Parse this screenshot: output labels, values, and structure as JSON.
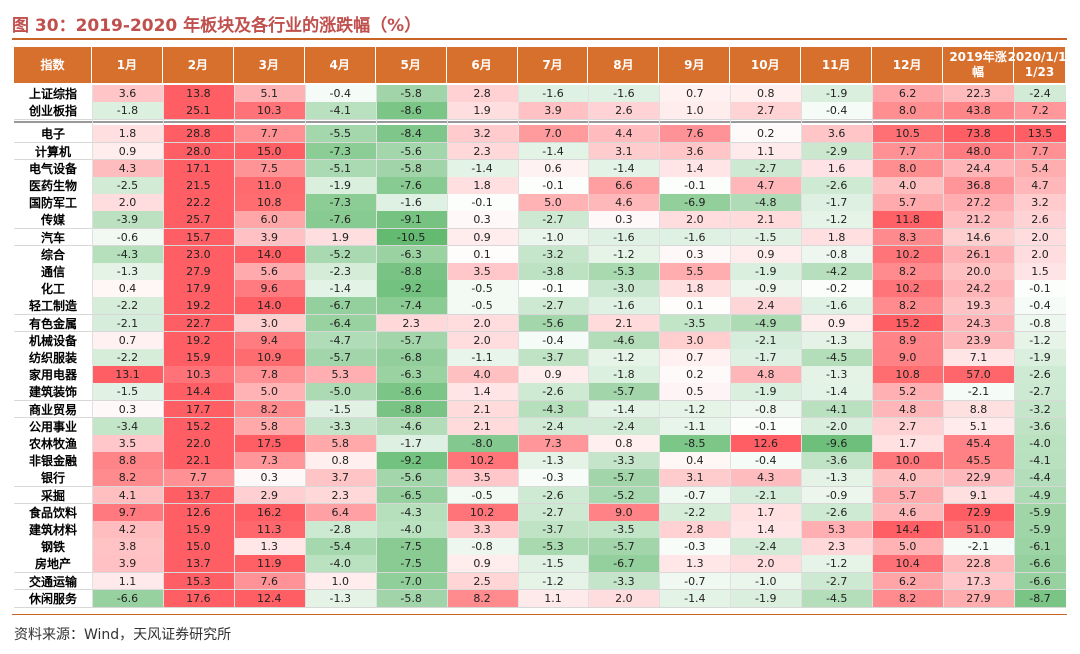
{
  "title": "图 30：2019-2020 年板块及各行业的涨跌幅（%）",
  "source": "资料来源：Wind，天风证券研究所",
  "colors": {
    "header_bg": "#d8702d",
    "positive": "#e8404a",
    "negative": "#3caa50",
    "accent": "#c86428"
  },
  "chart_data": {
    "type": "table",
    "columns": [
      "指数",
      "1月",
      "2月",
      "3月",
      "4月",
      "5月",
      "6月",
      "7月",
      "8月",
      "9月",
      "10月",
      "11月",
      "12月",
      "2019年涨幅",
      "2020/1/1-1/23"
    ],
    "rows": [
      {
        "name": "上证综指",
        "values": [
          3.6,
          13.8,
          5.1,
          -0.4,
          -5.8,
          2.8,
          -1.6,
          -1.6,
          0.7,
          0.8,
          -1.9,
          6.2,
          22.3,
          -2.4
        ]
      },
      {
        "name": "创业板指",
        "values": [
          -1.8,
          25.1,
          10.3,
          -4.1,
          -8.6,
          1.9,
          3.9,
          2.6,
          1.0,
          2.7,
          -0.4,
          8.0,
          43.8,
          7.2
        ]
      },
      {
        "name": "电子",
        "values": [
          1.8,
          28.8,
          7.7,
          -5.5,
          -8.4,
          3.2,
          7.0,
          4.4,
          7.6,
          0.2,
          3.6,
          10.5,
          73.8,
          13.5
        ]
      },
      {
        "name": "计算机",
        "values": [
          0.9,
          28.0,
          15.0,
          -7.3,
          -5.6,
          2.3,
          -1.4,
          3.1,
          3.6,
          1.1,
          -2.9,
          7.7,
          48.0,
          7.7
        ]
      },
      {
        "name": "电气设备",
        "values": [
          4.3,
          17.1,
          7.5,
          -5.1,
          -5.8,
          -1.4,
          0.6,
          -1.4,
          1.4,
          -2.7,
          1.6,
          8.0,
          24.4,
          5.4
        ]
      },
      {
        "name": "医药生物",
        "values": [
          -2.5,
          21.5,
          11.0,
          -1.9,
          -7.6,
          1.8,
          -0.1,
          6.6,
          -0.1,
          4.7,
          -2.6,
          4.0,
          36.8,
          4.7
        ]
      },
      {
        "name": "国防军工",
        "values": [
          2.0,
          22.2,
          10.8,
          -7.3,
          -1.6,
          -0.1,
          5.0,
          4.6,
          -6.9,
          -4.8,
          -1.7,
          5.7,
          27.2,
          3.2
        ]
      },
      {
        "name": "传媒",
        "values": [
          -3.9,
          25.7,
          6.0,
          -7.6,
          -9.1,
          0.3,
          -2.7,
          0.3,
          2.0,
          2.1,
          -1.2,
          11.8,
          21.2,
          2.6
        ]
      },
      {
        "name": "汽车",
        "values": [
          -0.6,
          15.7,
          3.9,
          1.9,
          -10.5,
          0.9,
          -1.0,
          -1.6,
          -1.6,
          -1.5,
          1.8,
          8.3,
          14.6,
          2.0
        ]
      },
      {
        "name": "综合",
        "values": [
          -4.3,
          23.0,
          14.0,
          -5.2,
          -6.3,
          0.1,
          -3.2,
          -1.2,
          0.3,
          0.9,
          -0.8,
          10.2,
          26.1,
          2.0
        ]
      },
      {
        "name": "通信",
        "values": [
          -1.3,
          27.9,
          5.6,
          -2.3,
          -8.8,
          3.5,
          -3.8,
          -5.3,
          5.5,
          -1.9,
          -4.2,
          8.2,
          20.0,
          1.5
        ]
      },
      {
        "name": "化工",
        "values": [
          0.4,
          17.9,
          9.6,
          -1.4,
          -9.2,
          -0.5,
          -0.1,
          -3.0,
          1.8,
          -0.9,
          -0.2,
          10.2,
          24.2,
          -0.1
        ]
      },
      {
        "name": "轻工制造",
        "values": [
          -2.2,
          19.2,
          14.0,
          -6.7,
          -7.4,
          -0.5,
          -2.7,
          -1.6,
          0.1,
          2.4,
          -1.6,
          8.2,
          19.3,
          -0.4
        ]
      },
      {
        "name": "有色金属",
        "values": [
          -2.1,
          22.7,
          3.0,
          -6.4,
          2.3,
          2.0,
          -5.6,
          2.1,
          -3.5,
          -4.9,
          0.9,
          15.2,
          24.3,
          -0.8
        ]
      },
      {
        "name": "机械设备",
        "values": [
          0.7,
          19.2,
          9.4,
          -4.7,
          -5.7,
          2.0,
          -0.4,
          -4.6,
          3.0,
          -2.1,
          -1.3,
          8.9,
          23.9,
          -1.2
        ]
      },
      {
        "name": "纺织服装",
        "values": [
          -2.2,
          15.9,
          10.9,
          -5.7,
          -6.8,
          -1.1,
          -3.7,
          -1.2,
          0.7,
          -1.7,
          -4.5,
          9.0,
          7.1,
          -1.9
        ]
      },
      {
        "name": "家用电器",
        "values": [
          13.1,
          10.3,
          7.8,
          5.3,
          -6.3,
          4.0,
          0.9,
          -1.8,
          0.2,
          4.8,
          -1.3,
          10.8,
          57.0,
          -2.6
        ]
      },
      {
        "name": "建筑装饰",
        "values": [
          -1.5,
          14.4,
          5.0,
          -5.0,
          -8.6,
          1.4,
          -2.6,
          -5.7,
          0.5,
          -1.9,
          -1.4,
          5.2,
          -2.1,
          -2.7
        ]
      },
      {
        "name": "商业贸易",
        "values": [
          0.3,
          17.7,
          8.2,
          -1.5,
          -8.8,
          2.1,
          -4.3,
          -1.4,
          -1.2,
          -0.8,
          -4.1,
          4.8,
          8.8,
          -3.2
        ]
      },
      {
        "name": "公用事业",
        "values": [
          -3.4,
          15.2,
          5.8,
          -3.3,
          -4.6,
          2.1,
          -2.4,
          -2.4,
          -1.1,
          -0.1,
          -2.0,
          2.7,
          5.1,
          -3.6
        ]
      },
      {
        "name": "农林牧渔",
        "values": [
          3.5,
          22.0,
          17.5,
          5.8,
          -1.7,
          -8.0,
          7.3,
          0.8,
          -8.5,
          12.6,
          -9.6,
          1.7,
          45.4,
          -4.0
        ]
      },
      {
        "name": "非银金融",
        "values": [
          8.8,
          22.1,
          7.3,
          0.8,
          -9.2,
          10.2,
          -1.3,
          -3.3,
          0.4,
          -0.4,
          -3.6,
          10.0,
          45.5,
          -4.1
        ]
      },
      {
        "name": "银行",
        "values": [
          8.2,
          7.7,
          0.3,
          3.7,
          -5.6,
          3.5,
          -0.3,
          -5.7,
          3.1,
          4.3,
          -1.3,
          4.0,
          22.9,
          -4.4
        ]
      },
      {
        "name": "采掘",
        "values": [
          4.1,
          13.7,
          2.9,
          2.3,
          -6.5,
          -0.5,
          -2.6,
          -5.2,
          -0.7,
          -2.1,
          -0.9,
          5.7,
          9.1,
          -4.9
        ]
      },
      {
        "name": "食品饮料",
        "values": [
          9.7,
          12.6,
          16.2,
          6.4,
          -4.3,
          10.2,
          -2.7,
          9.0,
          -2.2,
          1.7,
          -2.6,
          4.6,
          72.9,
          -5.9
        ]
      },
      {
        "name": "建筑材料",
        "values": [
          4.2,
          15.9,
          11.3,
          -2.8,
          -4.0,
          3.3,
          -3.7,
          -3.5,
          2.8,
          1.4,
          5.3,
          14.4,
          51.0,
          -5.9
        ]
      },
      {
        "name": "钢铁",
        "values": [
          3.8,
          15.0,
          1.3,
          -5.4,
          -7.5,
          -0.8,
          -5.3,
          -5.7,
          -0.3,
          -2.4,
          2.3,
          5.0,
          -2.1,
          -6.1
        ]
      },
      {
        "name": "房地产",
        "values": [
          3.9,
          13.7,
          11.9,
          -4.0,
          -7.5,
          0.9,
          -1.5,
          -6.7,
          1.3,
          2.0,
          -1.2,
          10.4,
          22.8,
          -6.6
        ]
      },
      {
        "name": "交通运输",
        "values": [
          1.1,
          15.3,
          7.6,
          1.0,
          -7.0,
          2.5,
          -1.2,
          -3.3,
          -0.7,
          -1.0,
          -2.7,
          6.2,
          17.3,
          -6.6
        ]
      },
      {
        "name": "休闲服务",
        "values": [
          -6.6,
          17.6,
          12.4,
          -1.3,
          -5.8,
          8.2,
          1.1,
          2.0,
          -1.4,
          -1.9,
          -4.5,
          8.2,
          27.9,
          -8.7
        ]
      }
    ]
  }
}
